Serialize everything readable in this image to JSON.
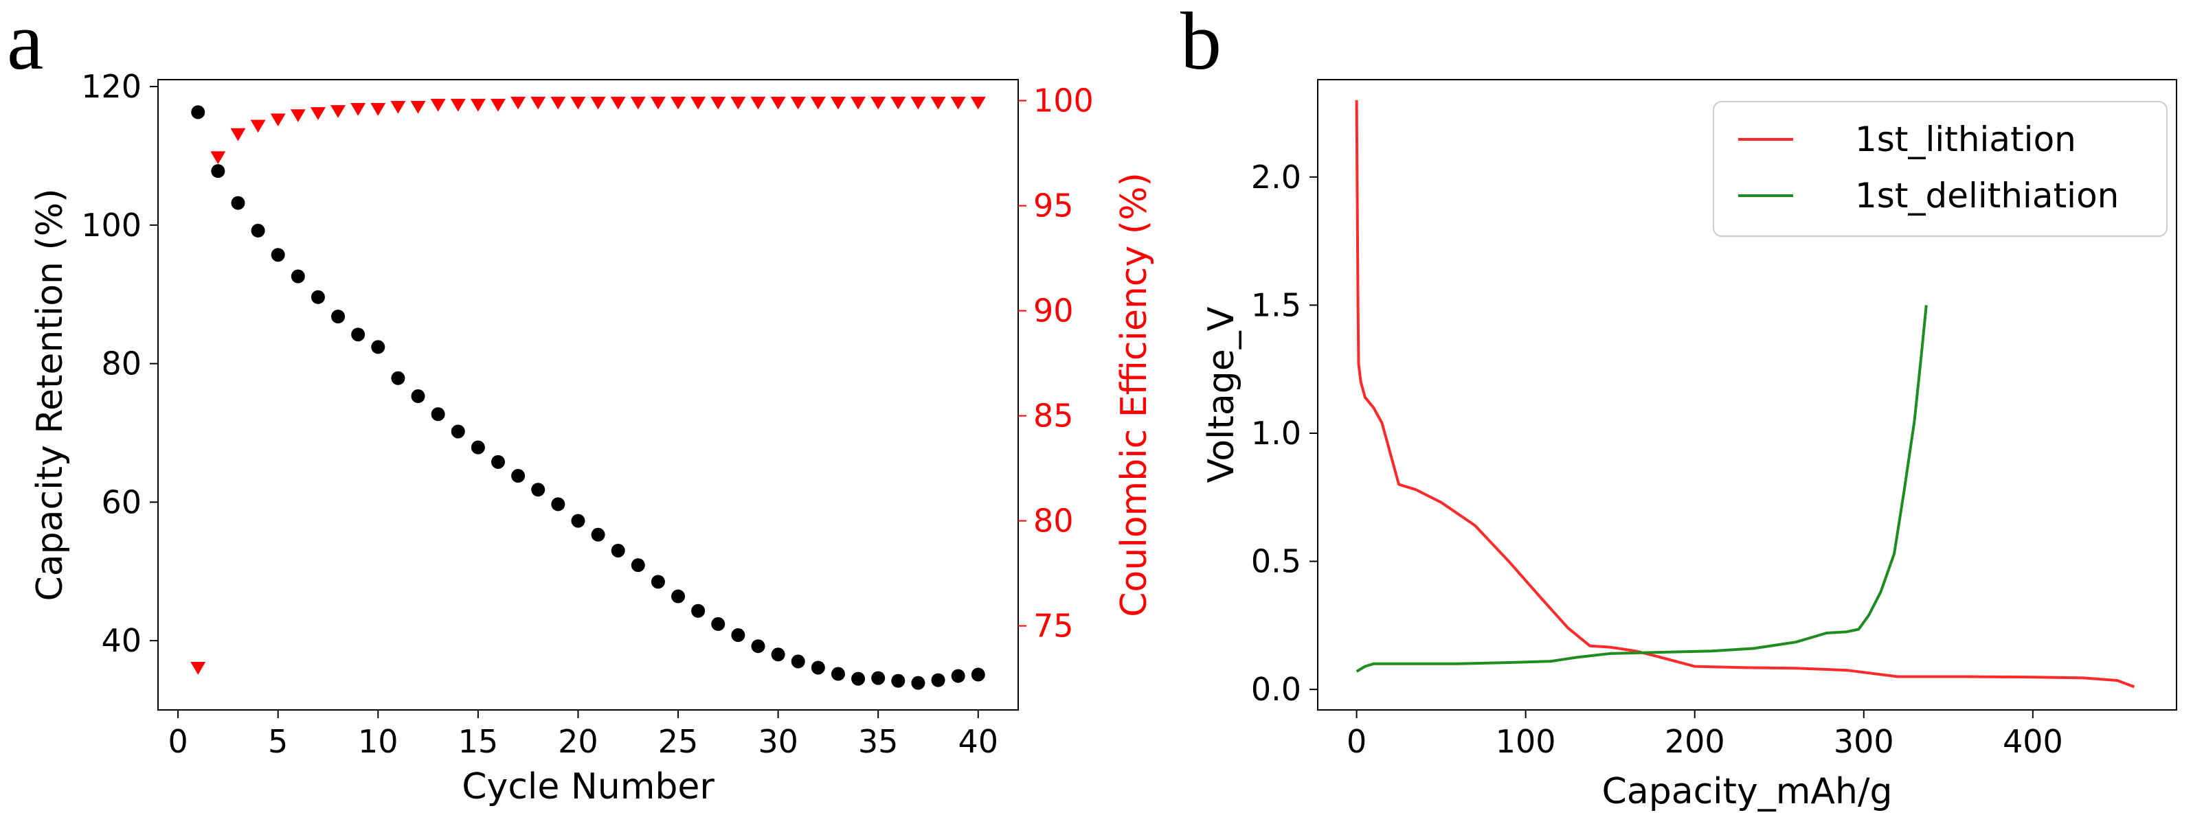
{
  "panels": [
    {
      "letter": "a"
    },
    {
      "letter": "b"
    }
  ],
  "colors": {
    "retention": "#000000",
    "efficiency": "#ff0000",
    "lithiation": "#ff2a2a",
    "delithiation": "#1f8c1f"
  },
  "chart_data": [
    {
      "type": "scatter",
      "panel": "a",
      "xlabel": "Cycle Number",
      "ylabel": "Capacity Retention (%)",
      "y2label": "Coulombic Efficiency (%)",
      "xlim": [
        -1,
        42
      ],
      "ylim": [
        30,
        121
      ],
      "y2lim": [
        71.0,
        101.0
      ],
      "xticks": [
        0,
        5,
        10,
        15,
        20,
        25,
        30,
        35,
        40
      ],
      "yticks": [
        40,
        60,
        80,
        100,
        120
      ],
      "y2ticks": [
        75,
        80,
        85,
        90,
        95,
        100
      ],
      "grid": false,
      "series": [
        {
          "name": "Capacity Retention",
          "axis": "left",
          "marker": "circle",
          "x": [
            1,
            2,
            3,
            4,
            5,
            6,
            7,
            8,
            9,
            10,
            11,
            12,
            13,
            14,
            15,
            16,
            17,
            18,
            19,
            20,
            21,
            22,
            23,
            24,
            25,
            26,
            27,
            28,
            29,
            30,
            31,
            32,
            33,
            34,
            35,
            36,
            37,
            38,
            39,
            40
          ],
          "values": [
            116.3,
            107.8,
            103.2,
            99.2,
            95.7,
            92.6,
            89.6,
            86.8,
            84.2,
            82.4,
            77.9,
            75.3,
            72.7,
            70.2,
            67.9,
            65.8,
            63.8,
            61.8,
            59.7,
            57.3,
            55.3,
            53.0,
            50.9,
            48.5,
            46.4,
            44.3,
            42.4,
            40.8,
            39.2,
            38.0,
            37.0,
            36.1,
            35.2,
            34.5,
            34.6,
            34.2,
            33.9,
            34.3,
            34.9,
            35.1
          ]
        },
        {
          "name": "Coulombic Efficiency",
          "axis": "right",
          "marker": "triangle-down",
          "x": [
            1,
            2,
            3,
            4,
            5,
            6,
            7,
            8,
            9,
            10,
            11,
            12,
            13,
            14,
            15,
            16,
            17,
            18,
            19,
            20,
            21,
            22,
            23,
            24,
            25,
            26,
            27,
            28,
            29,
            30,
            31,
            32,
            33,
            34,
            35,
            36,
            37,
            38,
            39,
            40
          ],
          "values": [
            73.0,
            97.3,
            98.4,
            98.8,
            99.1,
            99.3,
            99.4,
            99.5,
            99.6,
            99.6,
            99.7,
            99.7,
            99.8,
            99.8,
            99.8,
            99.8,
            99.9,
            99.9,
            99.9,
            99.9,
            99.9,
            99.9,
            99.9,
            99.9,
            99.9,
            99.9,
            99.9,
            99.9,
            99.9,
            99.9,
            99.9,
            99.9,
            99.9,
            99.9,
            99.9,
            99.9,
            99.9,
            99.9,
            99.9,
            99.9
          ]
        }
      ]
    },
    {
      "type": "line",
      "panel": "b",
      "xlabel": "Capacity_mAh/g",
      "ylabel": "Voltage_V",
      "xlim": [
        -23,
        485
      ],
      "ylim": [
        -0.08,
        2.38
      ],
      "xticks": [
        0,
        100,
        200,
        300,
        400
      ],
      "yticks": [
        "0.0",
        "0.5",
        "1.0",
        "1.5",
        "2.0"
      ],
      "legend_position": "top-right",
      "grid": false,
      "series": [
        {
          "name": "1st_lithiation",
          "color_key": "lithiation",
          "points": [
            [
              0,
              2.3
            ],
            [
              0.4,
              1.9
            ],
            [
              0.8,
              1.5
            ],
            [
              1.2,
              1.27
            ],
            [
              2.5,
              1.2
            ],
            [
              5,
              1.14
            ],
            [
              10,
              1.1
            ],
            [
              15,
              1.04
            ],
            [
              20,
              0.92
            ],
            [
              25,
              0.8
            ],
            [
              35,
              0.78
            ],
            [
              50,
              0.73
            ],
            [
              70,
              0.64
            ],
            [
              90,
              0.5
            ],
            [
              110,
              0.35
            ],
            [
              125,
              0.24
            ],
            [
              138,
              0.17
            ],
            [
              150,
              0.165
            ],
            [
              165,
              0.15
            ],
            [
              180,
              0.125
            ],
            [
              200,
              0.09
            ],
            [
              230,
              0.085
            ],
            [
              260,
              0.083
            ],
            [
              290,
              0.075
            ],
            [
              320,
              0.05
            ],
            [
              360,
              0.05
            ],
            [
              400,
              0.048
            ],
            [
              430,
              0.045
            ],
            [
              450,
              0.035
            ],
            [
              460,
              0.01
            ]
          ]
        },
        {
          "name": "1st_delithiation",
          "color_key": "delithiation",
          "points": [
            [
              0,
              0.07
            ],
            [
              5,
              0.09
            ],
            [
              10,
              0.1
            ],
            [
              30,
              0.1
            ],
            [
              60,
              0.1
            ],
            [
              90,
              0.105
            ],
            [
              115,
              0.11
            ],
            [
              130,
              0.125
            ],
            [
              150,
              0.14
            ],
            [
              180,
              0.145
            ],
            [
              210,
              0.15
            ],
            [
              235,
              0.16
            ],
            [
              260,
              0.185
            ],
            [
              278,
              0.22
            ],
            [
              290,
              0.225
            ],
            [
              297,
              0.235
            ],
            [
              303,
              0.29
            ],
            [
              310,
              0.38
            ],
            [
              318,
              0.53
            ],
            [
              324,
              0.78
            ],
            [
              330,
              1.05
            ],
            [
              334,
              1.3
            ],
            [
              337,
              1.5
            ]
          ]
        }
      ]
    }
  ]
}
